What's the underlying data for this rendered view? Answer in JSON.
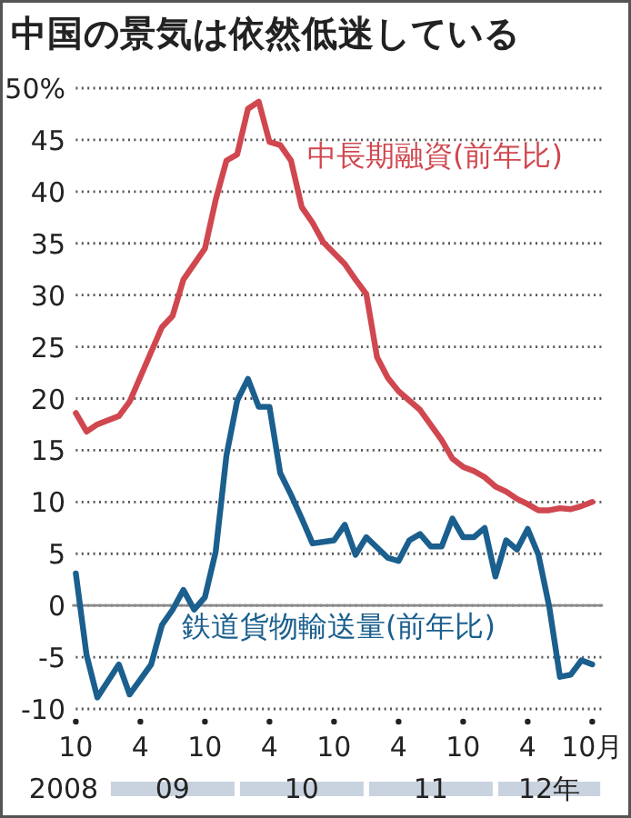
{
  "chart_data": {
    "type": "line",
    "title": "中国の景気は依然低迷している",
    "x": [
      "2008-10",
      "2008-11",
      "2008-12",
      "2009-02",
      "2009-03",
      "2009-05",
      "2009-06",
      "2009-07",
      "2009-08",
      "2009-10",
      "2009-11",
      "2009-12",
      "2010-01",
      "2010-02",
      "2010-03",
      "2010-04",
      "2010-05",
      "2010-06",
      "2010-07",
      "2010-08",
      "2010-09",
      "2010-11",
      "2010-12",
      "2011-01",
      "2011-02",
      "2011-03",
      "2011-04",
      "2011-06",
      "2011-08",
      "2011-09",
      "2011-10",
      "2011-11",
      "2011-12",
      "2012-01",
      "2012-02",
      "2012-03",
      "2012-04",
      "2012-05",
      "2012-06",
      "2012-07",
      "2012-08",
      "2012-09",
      "2012-10"
    ],
    "series": [
      {
        "name": "中長期融資(前年比)",
        "color": "#d0474f",
        "values": [
          18.6,
          16.8,
          17.5,
          18.3,
          19.7,
          24.5,
          26.9,
          28,
          31.5,
          34.5,
          39.2,
          43,
          43.6,
          48,
          48.7,
          44.8,
          44.5,
          43,
          38.5,
          37,
          35.1,
          33,
          31.5,
          30.1,
          24,
          22,
          20.7,
          18.9,
          16,
          14.2,
          13.4,
          13,
          12.4,
          11.5,
          11,
          10.3,
          9.8,
          9.2,
          9.2,
          9.4,
          9.3,
          9.6,
          10
        ]
      },
      {
        "name": "鉄道貨物輸送量(前年比)",
        "color": "#1a5f8e",
        "x": [
          "2008-10",
          "2008-11",
          "2008-12",
          "2009-02",
          "2009-03",
          "2009-05",
          "2009-06",
          "2009-07",
          "2009-08",
          "2009-09",
          "2009-10",
          "2009-11",
          "2009-12",
          "2010-01",
          "2010-02",
          "2010-03",
          "2010-04",
          "2010-05",
          "2010-06",
          "2010-07",
          "2010-08",
          "2010-10",
          "2010-11",
          "2010-12",
          "2011-01",
          "2011-03",
          "2011-04",
          "2011-05",
          "2011-06",
          "2011-07",
          "2011-08",
          "2011-09",
          "2011-10",
          "2011-11",
          "2011-12",
          "2012-01",
          "2012-02",
          "2012-03",
          "2012-04",
          "2012-05",
          "2012-06",
          "2012-07",
          "2012-08",
          "2012-09",
          "2012-10"
        ],
        "values": [
          3.1,
          -4.8,
          -8.9,
          -5.7,
          -8.6,
          -5.7,
          -1.9,
          -0.4,
          1.5,
          -0.4,
          0.8,
          5.2,
          14.5,
          19.8,
          21.9,
          19.2,
          19.2,
          12.8,
          10.7,
          8.4,
          6,
          6.3,
          7.8,
          4.9,
          6.6,
          4.6,
          4.3,
          6.3,
          6.9,
          5.7,
          5.7,
          8.4,
          6.6,
          6.6,
          7.5,
          2.8,
          6.3,
          5.4,
          7.4,
          4.9,
          -0.1,
          -6.9,
          -6.7,
          -5.3,
          -5.7
        ]
      }
    ],
    "xlim": [
      "2008-10",
      "2012-11"
    ],
    "xticks": [
      {
        "value": "2008-10",
        "label": "10"
      },
      {
        "value": "2009-04",
        "label": "4"
      },
      {
        "value": "2009-10",
        "label": "10"
      },
      {
        "value": "2010-04",
        "label": "4"
      },
      {
        "value": "2010-10",
        "label": "10"
      },
      {
        "value": "2011-04",
        "label": "4"
      },
      {
        "value": "2011-10",
        "label": "10"
      },
      {
        "value": "2012-04",
        "label": "4"
      },
      {
        "value": "2012-10",
        "label": "10月"
      }
    ],
    "ylim": [
      -10,
      50
    ],
    "yticks": [
      -10,
      -5,
      0,
      5,
      10,
      15,
      20,
      25,
      30,
      35,
      40,
      45,
      {
        "value": 50,
        "label": "50%"
      }
    ],
    "grid": "y",
    "ref_lines": [
      {
        "axis": "y",
        "value": 0,
        "color": "#8a8a8a"
      }
    ],
    "annotations": [
      "2008",
      "09",
      "10",
      "11",
      "12年"
    ]
  }
}
